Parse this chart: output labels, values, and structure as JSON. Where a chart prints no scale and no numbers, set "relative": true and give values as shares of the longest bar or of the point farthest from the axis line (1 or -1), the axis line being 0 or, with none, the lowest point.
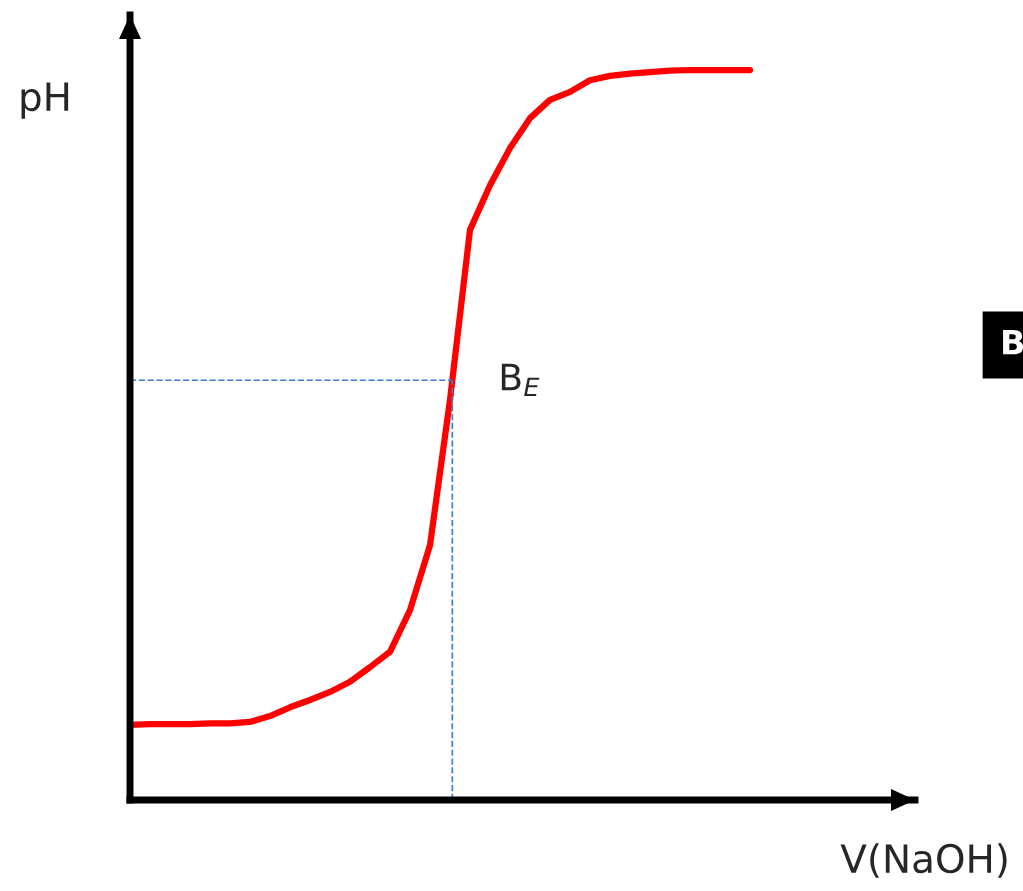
{
  "chart_data": {
    "type": "line",
    "relative": true,
    "xlabel": "V(NaOH)",
    "ylabel": "pH",
    "categories": [
      null,
      null,
      null,
      null,
      null,
      null,
      null,
      null,
      null,
      null,
      null,
      null,
      null,
      null,
      null,
      null,
      null,
      null,
      null,
      null,
      null,
      null,
      null,
      null,
      null,
      null,
      null,
      null,
      null,
      null,
      null,
      null
    ],
    "series": [
      {
        "color": "#ff0000",
        "values": [
          0.103,
          0.104,
          0.104,
          0.104,
          0.105,
          0.105,
          0.107,
          0.115,
          0.127,
          0.137,
          0.148,
          0.162,
          0.182,
          0.203,
          0.26,
          0.349,
          0.548,
          0.781,
          0.842,
          0.893,
          0.934,
          0.959,
          0.97,
          0.986,
          0.992,
          0.995,
          0.997,
          0.999,
          1,
          1,
          1,
          1
        ]
      }
    ],
    "ref_lines": [
      {
        "axis": "y",
        "value": 0.575,
        "color": "#3b7fd0",
        "line_style": "dashed"
      }
    ],
    "annotations": [
      "B$_{E}$",
      "B"
    ],
    "marker": "none",
    "line_style": "solid"
  }
}
